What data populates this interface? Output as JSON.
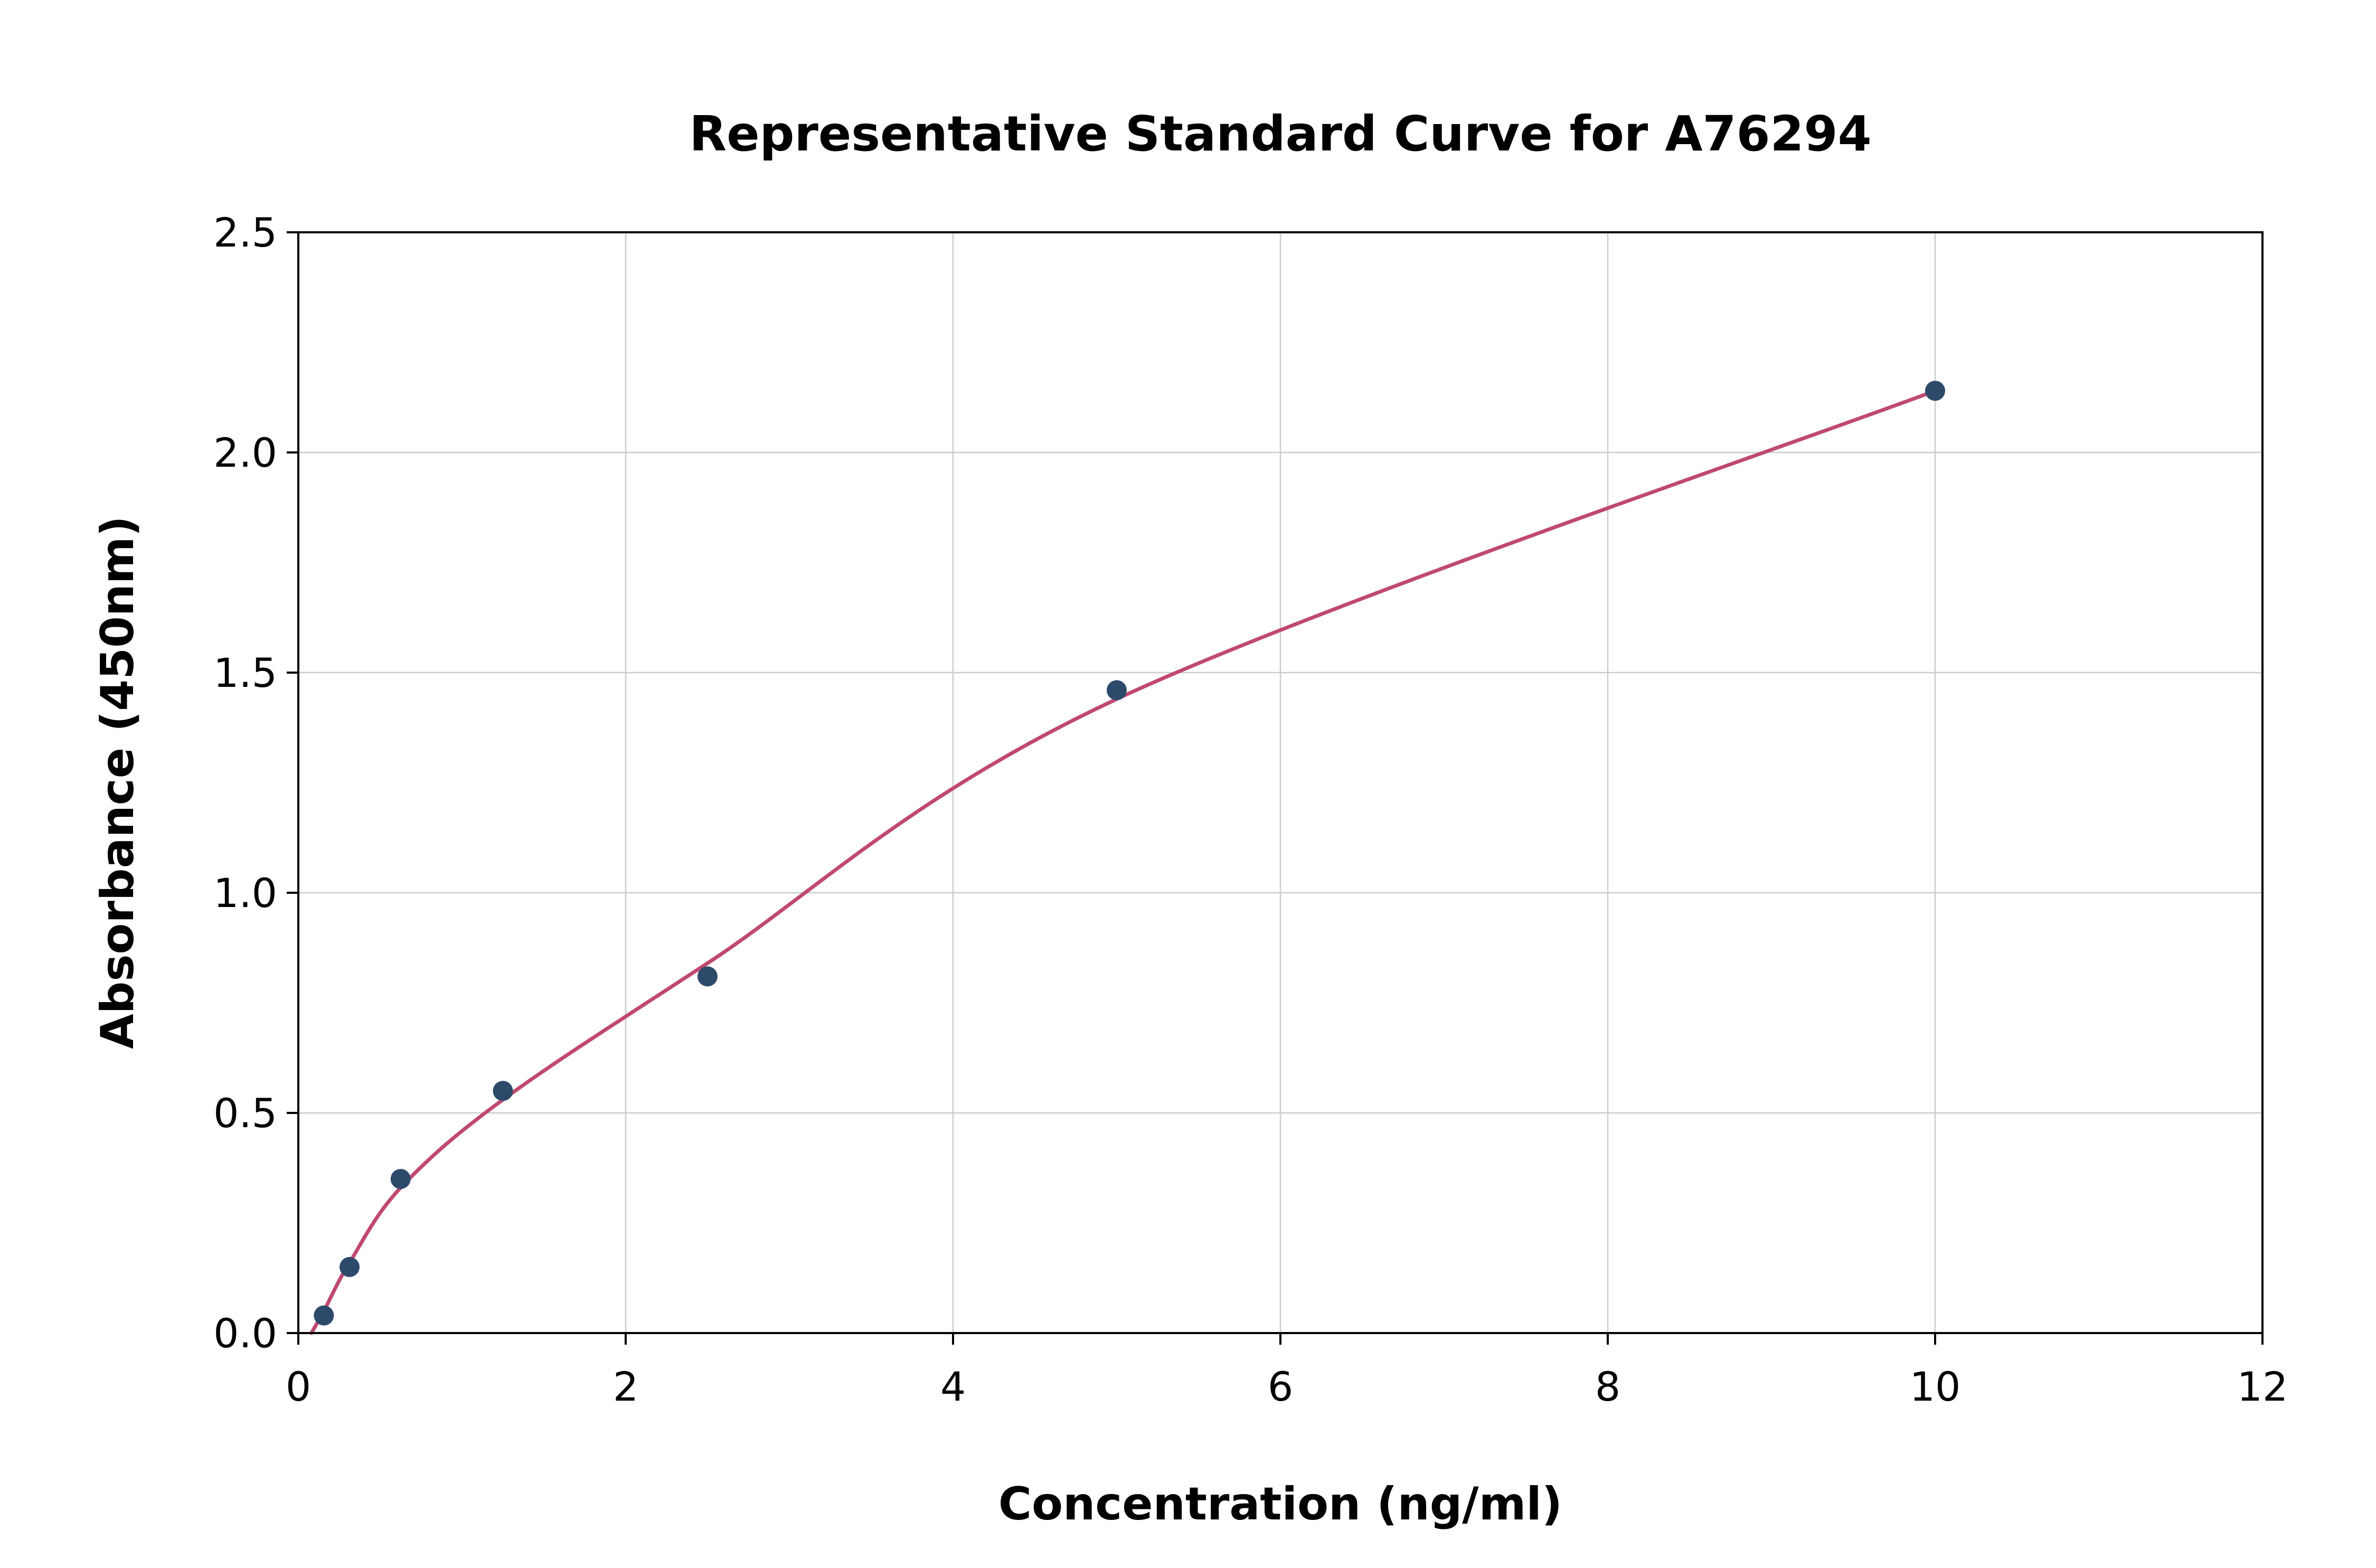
{
  "chart_data": {
    "type": "scatter",
    "title": "Representative Standard Curve for A76294",
    "xlabel": "Concentration (ng/ml)",
    "ylabel": "Absorbance (450nm)",
    "x": [
      0.156,
      0.313,
      0.625,
      1.25,
      2.5,
      5,
      10
    ],
    "y": [
      0.04,
      0.15,
      0.35,
      0.55,
      0.81,
      1.46,
      2.14
    ],
    "fit_curve": {
      "x": [
        0.08,
        0.156,
        0.313,
        0.625,
        1.25,
        2.5,
        5,
        10
      ],
      "y": [
        0.0,
        0.05,
        0.16,
        0.33,
        0.53,
        0.84,
        1.44,
        2.14
      ]
    },
    "xlim": [
      0,
      12
    ],
    "ylim": [
      0,
      2.5
    ],
    "xticks": {
      "values": [
        0,
        2,
        4,
        6,
        8,
        10,
        12
      ],
      "labels": [
        "0",
        "2",
        "4",
        "6",
        "8",
        "10",
        "12"
      ]
    },
    "yticks": {
      "values": [
        0,
        0.5,
        1.0,
        1.5,
        2.0,
        2.5
      ],
      "labels": [
        "0.0",
        "0.5",
        "1.0",
        "1.5",
        "2.0",
        "2.5"
      ]
    },
    "grid": true,
    "legend": "none",
    "colors": {
      "marker": "#2e4a6b",
      "curve": "#c0496f",
      "grid": "#cccccc",
      "spine": "#000000",
      "text": "#000000",
      "background": "#ffffff"
    }
  }
}
